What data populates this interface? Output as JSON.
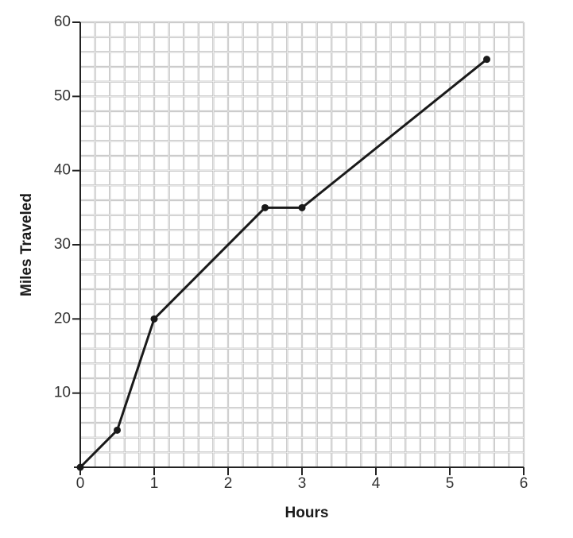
{
  "chart_data": {
    "type": "line",
    "x_label": "Hours",
    "y_label": "Miles Traveled",
    "x": [
      0,
      0.5,
      1,
      2.5,
      3,
      5.5
    ],
    "series": [
      {
        "color": "#1a1a1a",
        "values": [
          0,
          5,
          20,
          35,
          35,
          55
        ]
      }
    ],
    "xlim": [
      0,
      6
    ],
    "xticks": [
      0,
      1,
      2,
      3,
      4,
      5,
      6
    ],
    "ylim": [
      0,
      60
    ],
    "yticks": [
      10,
      20,
      30,
      40,
      50,
      60
    ],
    "grid": true,
    "minor_grid": 5
  }
}
